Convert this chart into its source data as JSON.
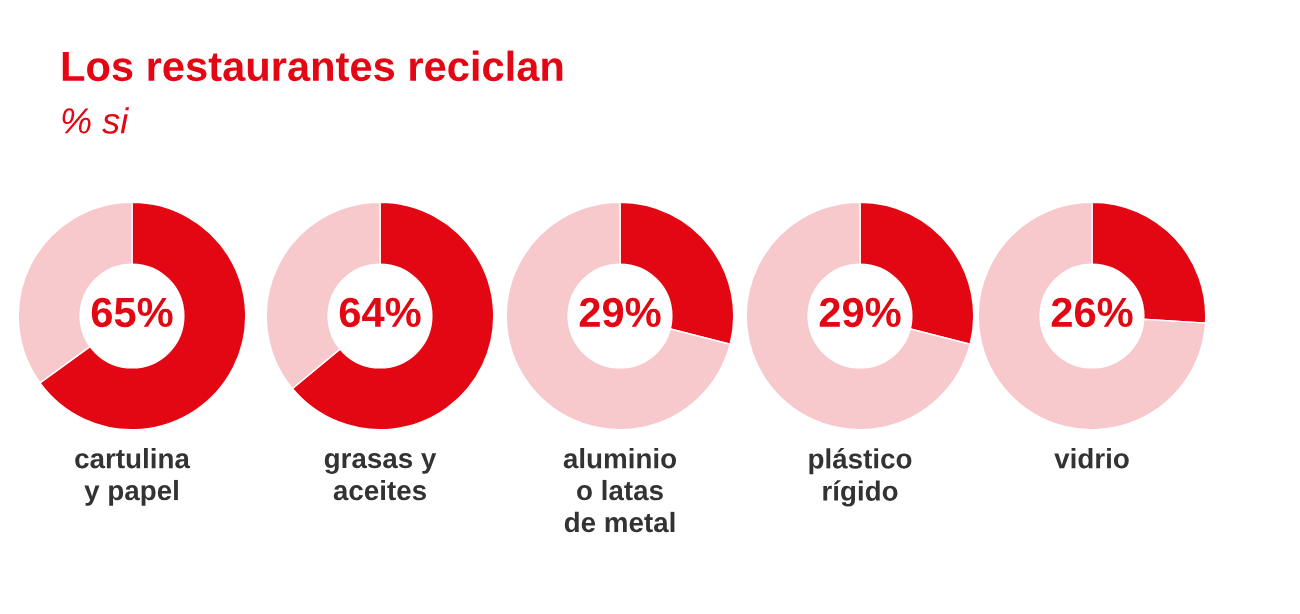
{
  "chart_data": [
    {
      "type": "donut",
      "title": "Los restaurantes reciclan",
      "subtitle": "% si",
      "categories": [
        null,
        null
      ],
      "values": [
        65,
        35
      ],
      "colors": [
        "#e30613",
        "#f8c9cc"
      ],
      "value_labels": [
        "65%",
        null
      ],
      "xlabel": "cartulina\ny papel"
    },
    {
      "type": "donut",
      "categories": [
        null,
        null
      ],
      "values": [
        64,
        36
      ],
      "colors": [
        "#e30613",
        "#f8c9cc"
      ],
      "value_labels": [
        "64%",
        null
      ],
      "xlabel": "grasas y\naceites"
    },
    {
      "type": "donut",
      "categories": [
        null,
        null
      ],
      "values": [
        29,
        71
      ],
      "colors": [
        "#e30613",
        "#f8c9cc"
      ],
      "value_labels": [
        "29%",
        null
      ],
      "xlabel": "aluminio\no latas\nde metal"
    },
    {
      "type": "donut",
      "categories": [
        null,
        null
      ],
      "values": [
        29,
        71
      ],
      "colors": [
        "#e30613",
        "#f8c9cc"
      ],
      "value_labels": [
        "29%",
        null
      ],
      "xlabel": "plástico\nrígido"
    },
    {
      "type": "donut",
      "categories": [
        null,
        null
      ],
      "values": [
        26,
        74
      ],
      "colors": [
        "#e30613",
        "#f8c9cc"
      ],
      "value_labels": [
        "26%",
        null
      ],
      "xlabel": "vidrio"
    }
  ]
}
